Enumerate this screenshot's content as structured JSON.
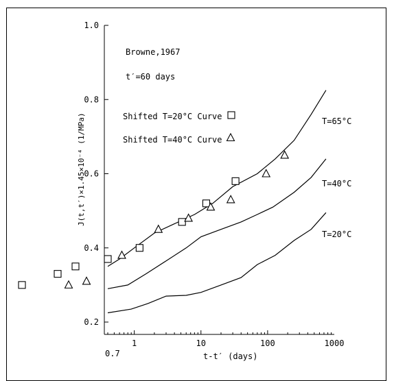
{
  "chart_data": {
    "type": "line",
    "x_scale": "log",
    "xlabel": "t-t′ (days)",
    "ylabel": "J(t,t′)×1.45×10⁻⁴ (1/MPa)",
    "xlim": [
      0.4,
      1000
    ],
    "ylim": [
      0.2,
      1.0
    ],
    "x_ticks": [
      {
        "value": 1,
        "label": "1"
      },
      {
        "value": 10,
        "label": "10"
      },
      {
        "value": 100,
        "label": "100"
      },
      {
        "value": 1000,
        "label": "1000"
      }
    ],
    "x_tick_outside": {
      "label": "0.7"
    },
    "y_ticks": [
      {
        "value": 0.2,
        "label": "0.2"
      },
      {
        "value": 0.4,
        "label": "0.4"
      },
      {
        "value": 0.6,
        "label": "0.6"
      },
      {
        "value": 0.8,
        "label": "0.8"
      },
      {
        "value": 1.0,
        "label": "1.0"
      }
    ],
    "annotations": {
      "source": "Browne,1967",
      "tprime": "t′=60 days"
    },
    "series": [
      {
        "name": "T=65°C",
        "kind": "curve",
        "x": [
          0.4,
          0.6,
          1,
          2,
          4,
          8,
          15,
          30,
          70,
          130,
          250,
          450,
          750
        ],
        "y": [
          0.35,
          0.37,
          0.4,
          0.44,
          0.465,
          0.49,
          0.52,
          0.565,
          0.6,
          0.64,
          0.69,
          0.76,
          0.825
        ]
      },
      {
        "name": "T=40°C",
        "kind": "curve",
        "x": [
          0.4,
          0.8,
          1.5,
          3,
          6,
          10,
          20,
          40,
          70,
          120,
          250,
          450,
          750
        ],
        "y": [
          0.29,
          0.3,
          0.33,
          0.365,
          0.4,
          0.43,
          0.45,
          0.47,
          0.49,
          0.51,
          0.55,
          0.59,
          0.64
        ]
      },
      {
        "name": "T=20°C",
        "kind": "curve",
        "x": [
          0.4,
          0.9,
          1.6,
          3,
          6,
          10,
          20,
          40,
          70,
          130,
          250,
          450,
          750
        ],
        "y": [
          0.225,
          0.235,
          0.25,
          0.27,
          0.272,
          0.28,
          0.3,
          0.32,
          0.355,
          0.38,
          0.42,
          0.45,
          0.495
        ]
      },
      {
        "name": "Shifted T=20°C Curve",
        "kind": "markers",
        "marker": "square",
        "x": [
          0.4,
          1.2,
          5.2,
          12,
          33
        ],
        "y": [
          0.37,
          0.4,
          0.47,
          0.52,
          0.58
        ]
      },
      {
        "name": "Shifted T=40°C Curve",
        "kind": "markers",
        "marker": "triangle",
        "x": [
          0.65,
          2.3,
          6.5,
          14,
          28,
          95,
          180
        ],
        "y": [
          0.38,
          0.45,
          0.48,
          0.51,
          0.53,
          0.6,
          0.65
        ]
      }
    ],
    "outside_markers": [
      {
        "marker": "square",
        "value": 0.3
      },
      {
        "marker": "square",
        "value": 0.33
      },
      {
        "marker": "square",
        "value": 0.35
      },
      {
        "marker": "triangle",
        "value": 0.3
      },
      {
        "marker": "triangle",
        "value": 0.31
      }
    ]
  }
}
